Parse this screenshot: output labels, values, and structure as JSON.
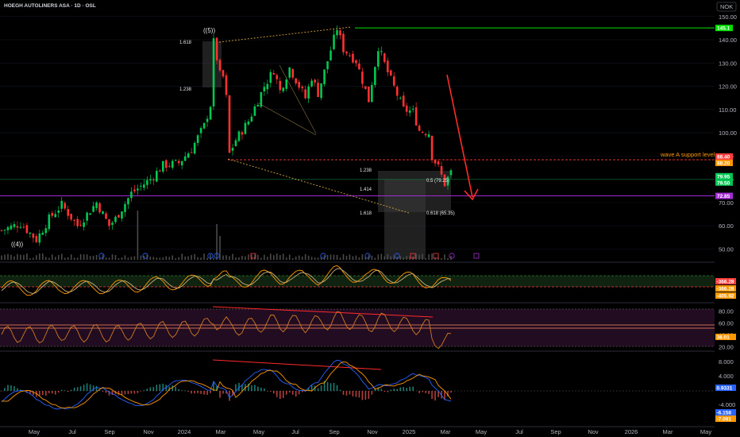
{
  "header": {
    "symbol": "HOEGH AUTOLINERS ASA · 1D · OSL",
    "currency": "NOK"
  },
  "chart_data": [
    {
      "type": "candlestick",
      "ylim": [
        45,
        152
      ],
      "yticks": [
        "150.00",
        "140.00",
        "130.00",
        "120.00",
        "110.00",
        "100.00",
        "90.00",
        "80.00",
        "70.00",
        "60.00",
        "50.00"
      ],
      "ytick_values": [
        150,
        140,
        130,
        120,
        110,
        100,
        90,
        80,
        70,
        60,
        50
      ],
      "xlabels": [
        "May",
        "Jul",
        "Sep",
        "Nov",
        "2024",
        "Mar",
        "May",
        "Jul",
        "Sep",
        "Nov",
        "2025",
        "Mar",
        "May",
        "Jul",
        "Sep",
        "Nov",
        "2026",
        "Mar",
        "May"
      ],
      "price_path": [
        [
          0,
          58
        ],
        [
          6,
          61
        ],
        [
          11,
          54
        ],
        [
          15,
          63
        ],
        [
          19,
          69
        ],
        [
          24,
          60
        ],
        [
          30,
          70
        ],
        [
          34,
          60
        ],
        [
          36,
          63
        ],
        [
          41,
          74
        ],
        [
          47,
          80
        ],
        [
          51,
          86
        ],
        [
          56,
          87
        ],
        [
          60,
          93
        ],
        [
          64,
          103
        ],
        [
          66,
          112
        ],
        [
          67,
          139
        ],
        [
          69,
          125
        ],
        [
          70,
          124
        ],
        [
          71,
          115
        ],
        [
          72,
          91
        ],
        [
          74,
          97
        ],
        [
          78,
          105
        ],
        [
          83,
          120
        ],
        [
          86,
          127
        ],
        [
          88,
          118
        ],
        [
          91,
          128
        ],
        [
          96,
          115
        ],
        [
          98,
          124
        ],
        [
          100,
          117
        ],
        [
          103,
          131
        ],
        [
          106,
          145
        ],
        [
          108,
          136
        ],
        [
          112,
          131
        ],
        [
          116,
          114
        ],
        [
          119,
          137
        ],
        [
          122,
          126
        ],
        [
          127,
          110
        ],
        [
          130,
          109
        ],
        [
          132,
          101
        ],
        [
          135,
          100
        ],
        [
          136,
          90
        ],
        [
          138,
          85
        ],
        [
          140,
          78
        ],
        [
          142,
          83
        ]
      ],
      "levels": [
        {
          "label": "145.1",
          "value": 145.1,
          "color": "#00e000"
        },
        {
          "label": "88.40",
          "value": 88.4,
          "color": "#ff3b3b",
          "note": "wave A support level"
        },
        {
          "label": "88.20",
          "value": 88.2,
          "color": "#ff9800"
        },
        {
          "label": "79.95",
          "value": 79.95,
          "color": "#00c853"
        },
        {
          "label": "79.50",
          "value": 79.5,
          "color": "#00c853"
        },
        {
          "label": "72.85",
          "value": 72.85,
          "color": "#a52bd6"
        }
      ],
      "annotations": {
        "waves": [
          "((4))",
          "((5))"
        ],
        "fib_top": [
          "1.618",
          "1.238"
        ],
        "fib_bottom": [
          "1.238",
          "1.414",
          "1.618"
        ],
        "fib_ret": [
          "0.5 (79.25)",
          "0.618 (65.35)"
        ],
        "projection_note": "wave A support level"
      },
      "colors": {
        "up": "#00c853",
        "down": "#ff3131"
      }
    },
    {
      "type": "line",
      "name_label": "",
      "ylim": [
        -400,
        -300
      ],
      "tags": [
        {
          "label": "-366.28",
          "color": "#ff3b3b"
        },
        {
          "label": "-366.28",
          "color": "#ff9800"
        },
        {
          "label": "-405.92",
          "color": "#ff9800"
        }
      ]
    },
    {
      "type": "line",
      "ylim": [
        15,
        90
      ],
      "yticks": [
        "80.00",
        "60.00",
        "40.00",
        "20.00"
      ],
      "ytick_values": [
        80,
        60,
        40,
        20
      ],
      "tags": [
        {
          "label": "38.01",
          "color": "#ff9800"
        }
      ]
    },
    {
      "type": "line",
      "ylim": [
        -9.5,
        10
      ],
      "yticks": [
        "8.000",
        "4.000",
        "-4.000"
      ],
      "ytick_values": [
        8,
        4,
        -4
      ],
      "tags": [
        {
          "label": "0.9331",
          "color": "#2962ff"
        },
        {
          "label": "-6.158",
          "color": "#2962ff"
        },
        {
          "label": "-7.091",
          "color": "#ff9800"
        }
      ]
    }
  ]
}
